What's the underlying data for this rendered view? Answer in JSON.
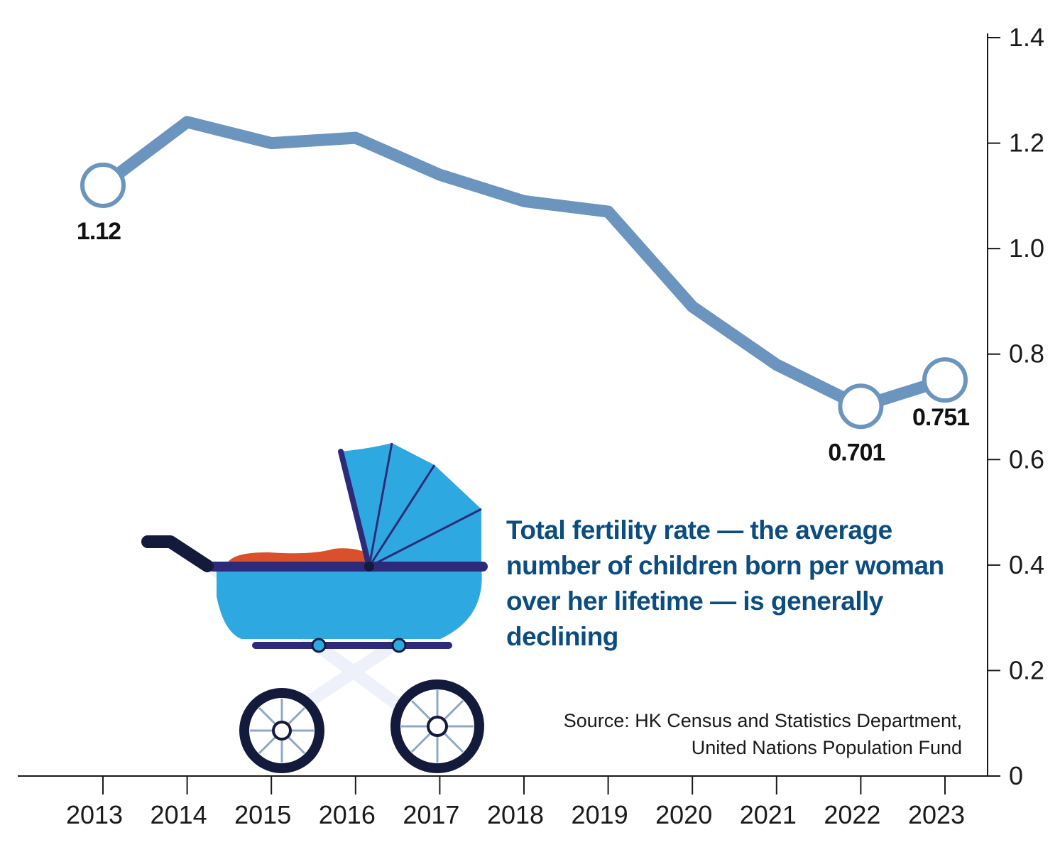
{
  "chart_data": {
    "type": "line",
    "x": [
      "2013",
      "2014",
      "2015",
      "2016",
      "2017",
      "2018",
      "2019",
      "2020",
      "2021",
      "2022",
      "2023"
    ],
    "series": [
      {
        "values": [
          1.12,
          1.24,
          1.2,
          1.21,
          1.14,
          1.09,
          1.07,
          0.89,
          0.78,
          0.701,
          0.751
        ]
      }
    ],
    "data_labels": [
      {
        "index": 0,
        "text": "1.12"
      },
      {
        "index": 9,
        "text": "0.701"
      },
      {
        "index": 10,
        "text": "0.751"
      }
    ],
    "y_ticks": [
      "0",
      "0.2",
      "0.4",
      "0.6",
      "0.8",
      "1.0",
      "1.2",
      "1.4"
    ],
    "ylim": [
      0,
      1.4
    ],
    "y_axis_side": "right",
    "grid": false,
    "line_color": "#6b95bf",
    "caption": "Total fertility rate — the average number of children born per woman over her lifetime — is generally declining",
    "source": [
      "Source: HK Census and Statistics Department,",
      "United Nations Population Fund"
    ]
  },
  "colors": {
    "caption": "#0b4d80",
    "stroller_body": "#2ea8e0",
    "stroller_frame": "#2d2a7a",
    "stroller_blanket": "#d9502a",
    "wheel": "#141a3c"
  }
}
